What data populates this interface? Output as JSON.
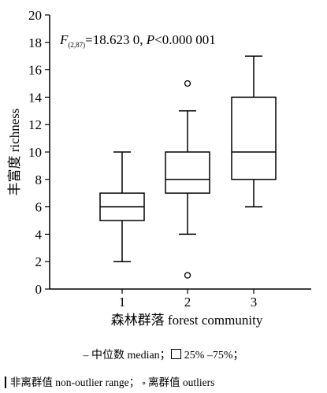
{
  "chart_data": {
    "type": "box",
    "ylabel": "丰富度 richness",
    "xlabel": "森林群落 forest community",
    "ylim": [
      0,
      20
    ],
    "yticks": [
      0,
      2,
      4,
      6,
      8,
      10,
      12,
      14,
      16,
      18,
      20
    ],
    "categories": [
      "1",
      "2",
      "3"
    ],
    "boxes": [
      {
        "category": "1",
        "whisker_low": 2,
        "q1": 5,
        "median": 6,
        "q3": 7,
        "whisker_high": 10,
        "outliers": []
      },
      {
        "category": "2",
        "whisker_low": 4,
        "q1": 7,
        "median": 8,
        "q3": 10,
        "whisker_high": 13,
        "outliers": [
          15,
          1
        ]
      },
      {
        "category": "3",
        "whisker_low": 6,
        "q1": 8,
        "median": 10,
        "q3": 14,
        "whisker_high": 17,
        "outliers": []
      }
    ],
    "annotation": {
      "F_symbol": "F",
      "F_subscript": "(2,87)",
      "F_value": "=18.623 0, ",
      "P_symbol": "P",
      "P_value": "<0.000 001"
    }
  },
  "legend": {
    "median_symbol": "–",
    "median_text": " 中位数 median；",
    "box_text": "25% –75%；",
    "whisker_symbol": "Ι",
    "whisker_text": "非离群值 non-outlier range；",
    "outlier_symbol": "∘",
    "outlier_text": "离群值 outliers"
  }
}
